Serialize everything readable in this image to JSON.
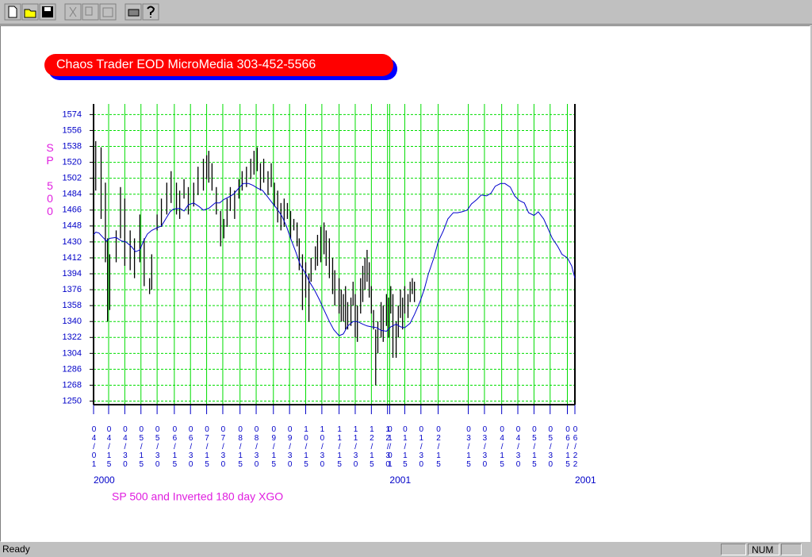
{
  "status_bar": {
    "message": "Ready",
    "indicator": "NUM"
  },
  "chart_data": {
    "type": "combo",
    "title": "Chaos Trader EOD MicroMedia 303-452-5566",
    "ylabel": "SP 500",
    "caption": "SP 500 and Inverted 180 day XGO",
    "grid": true,
    "grid_color": "#00dd00",
    "xlim": [
      0,
      447
    ],
    "xticks": [
      {
        "value": 0,
        "label": "04/01"
      },
      {
        "value": 14,
        "label": "04/15"
      },
      {
        "value": 29,
        "label": "04/30"
      },
      {
        "value": 44,
        "label": "05/15"
      },
      {
        "value": 59,
        "label": "05/30"
      },
      {
        "value": 75,
        "label": "06/15"
      },
      {
        "value": 90,
        "label": "06/30"
      },
      {
        "value": 105,
        "label": "07/15"
      },
      {
        "value": 120,
        "label": "07/30"
      },
      {
        "value": 136,
        "label": "08/15"
      },
      {
        "value": 151,
        "label": "08/30"
      },
      {
        "value": 167,
        "label": "09/15"
      },
      {
        "value": 182,
        "label": "09/30"
      },
      {
        "value": 197,
        "label": "10/15"
      },
      {
        "value": 212,
        "label": "10/30"
      },
      {
        "value": 228,
        "label": "11/15"
      },
      {
        "value": 243,
        "label": "11/30"
      },
      {
        "value": 258,
        "label": "12/15"
      },
      {
        "value": 273,
        "label": "12/30"
      },
      {
        "value": 275,
        "label": "01/01"
      },
      {
        "value": 289,
        "label": "01/15"
      },
      {
        "value": 304,
        "label": "01/30"
      },
      {
        "value": 320,
        "label": "02/15"
      },
      {
        "value": 348,
        "label": "03/15"
      },
      {
        "value": 363,
        "label": "03/30"
      },
      {
        "value": 379,
        "label": "04/15"
      },
      {
        "value": 394,
        "label": "04/30"
      },
      {
        "value": 409,
        "label": "05/15"
      },
      {
        "value": 424,
        "label": "05/30"
      },
      {
        "value": 440,
        "label": "06/15"
      },
      {
        "value": 447,
        "label": "06/22"
      }
    ],
    "x_year_labels": [
      {
        "value": 0,
        "label": "2000"
      },
      {
        "value": 275,
        "label": "2001"
      },
      {
        "value": 447,
        "label": "2001"
      }
    ],
    "ylim": [
      1246,
      1586
    ],
    "yticks": [
      1250,
      1268,
      1286,
      1304,
      1322,
      1340,
      1358,
      1376,
      1394,
      1412,
      1430,
      1448,
      1466,
      1484,
      1502,
      1520,
      1538,
      1556,
      1574
    ],
    "series": [
      {
        "type": "hilo",
        "color": "#000000",
        "x": [
          2,
          7,
          11,
          13,
          15,
          21,
          25,
          29,
          34,
          38,
          43,
          47,
          52,
          54,
          59,
          63,
          68,
          72,
          77,
          80,
          84,
          88,
          93,
          97,
          102,
          105,
          107,
          110,
          114,
          118,
          121,
          124,
          127,
          131,
          135,
          138,
          142,
          146,
          149,
          152,
          155,
          158,
          162,
          165,
          168,
          171,
          174,
          177,
          180,
          183,
          186,
          189,
          191,
          194,
          197,
          200,
          202,
          206,
          208,
          211,
          214,
          216,
          219,
          222,
          224,
          228,
          230,
          232,
          234,
          236,
          239,
          241,
          243,
          245,
          248,
          250,
          252,
          254,
          256,
          258,
          260,
          262,
          264,
          267,
          269,
          272,
          274,
          276,
          278,
          281,
          283,
          285,
          287,
          289,
          292,
          294,
          296,
          298
        ],
        "high": [
          1544,
          1537,
          1497,
          1434,
          1416,
          1443,
          1492,
          1479,
          1443,
          1434,
          1461,
          1434,
          1389,
          1416,
          1461,
          1479,
          1497,
          1510,
          1497,
          1488,
          1501,
          1492,
          1497,
          1515,
          1524,
          1528,
          1533,
          1519,
          1492,
          1465,
          1456,
          1479,
          1492,
          1488,
          1501,
          1510,
          1515,
          1524,
          1533,
          1537,
          1519,
          1524,
          1510,
          1519,
          1497,
          1488,
          1474,
          1479,
          1474,
          1465,
          1456,
          1452,
          1434,
          1416,
          1407,
          1394,
          1412,
          1425,
          1438,
          1447,
          1452,
          1443,
          1434,
          1412,
          1398,
          1389,
          1376,
          1371,
          1380,
          1362,
          1367,
          1385,
          1371,
          1358,
          1389,
          1403,
          1412,
          1421,
          1407,
          1380,
          1353,
          1331,
          1340,
          1362,
          1358,
          1371,
          1367,
          1380,
          1371,
          1340,
          1358,
          1376,
          1367,
          1380,
          1371,
          1385,
          1389,
          1385
        ],
        "low": [
          1488,
          1456,
          1407,
          1340,
          1353,
          1407,
          1434,
          1403,
          1398,
          1389,
          1407,
          1380,
          1371,
          1376,
          1443,
          1447,
          1461,
          1474,
          1461,
          1456,
          1479,
          1461,
          1470,
          1483,
          1488,
          1501,
          1497,
          1488,
          1461,
          1425,
          1434,
          1447,
          1465,
          1456,
          1479,
          1488,
          1492,
          1501,
          1506,
          1510,
          1488,
          1497,
          1483,
          1492,
          1470,
          1452,
          1443,
          1447,
          1456,
          1434,
          1443,
          1425,
          1398,
          1353,
          1367,
          1340,
          1385,
          1398,
          1403,
          1407,
          1416,
          1403,
          1389,
          1371,
          1358,
          1349,
          1340,
          1340,
          1331,
          1331,
          1335,
          1358,
          1322,
          1317,
          1349,
          1362,
          1376,
          1385,
          1367,
          1349,
          1331,
          1268,
          1304,
          1322,
          1317,
          1335,
          1322,
          1349,
          1299,
          1299,
          1322,
          1344,
          1331,
          1349,
          1344,
          1362,
          1371,
          1362
        ]
      },
      {
        "type": "line",
        "color": "#0000cc",
        "x": [
          0,
          2,
          5,
          8,
          12,
          15,
          21,
          26,
          30,
          35,
          39,
          43,
          46,
          50,
          54,
          59,
          63,
          67,
          71,
          74,
          80,
          84,
          88,
          93,
          98,
          102,
          107,
          113,
          117,
          121,
          126,
          130,
          135,
          139,
          144,
          148,
          152,
          157,
          161,
          166,
          170,
          175,
          179,
          183,
          188,
          192,
          197,
          201,
          205,
          210,
          214,
          219,
          223,
          228,
          232,
          236,
          241,
          245,
          250,
          254,
          258,
          263,
          267,
          272,
          276,
          281,
          285,
          289,
          294,
          298,
          303,
          307,
          311,
          316,
          320,
          325,
          329,
          334,
          338,
          342,
          347,
          351,
          356,
          360,
          365,
          369,
          373,
          378,
          382,
          387,
          391,
          395,
          400,
          404,
          409,
          413,
          418,
          422,
          426,
          431,
          435,
          440,
          444,
          447
        ],
        "values": [
          1438,
          1441,
          1440,
          1436,
          1431,
          1434,
          1435,
          1431,
          1430,
          1425,
          1419,
          1421,
          1430,
          1439,
          1443,
          1446,
          1448,
          1456,
          1464,
          1467,
          1468,
          1465,
          1472,
          1474,
          1470,
          1466,
          1468,
          1474,
          1474,
          1478,
          1481,
          1484,
          1491,
          1496,
          1496,
          1494,
          1491,
          1488,
          1482,
          1474,
          1468,
          1459,
          1448,
          1434,
          1418,
          1404,
          1394,
          1384,
          1376,
          1364,
          1353,
          1340,
          1331,
          1324,
          1326,
          1335,
          1340,
          1340,
          1337,
          1335,
          1334,
          1333,
          1330,
          1329,
          1334,
          1337,
          1334,
          1333,
          1338,
          1348,
          1362,
          1376,
          1394,
          1412,
          1430,
          1443,
          1456,
          1463,
          1463,
          1464,
          1466,
          1473,
          1478,
          1483,
          1482,
          1485,
          1493,
          1496,
          1496,
          1492,
          1482,
          1477,
          1474,
          1463,
          1460,
          1464,
          1456,
          1445,
          1434,
          1425,
          1416,
          1412,
          1403,
          1389
        ]
      }
    ]
  }
}
